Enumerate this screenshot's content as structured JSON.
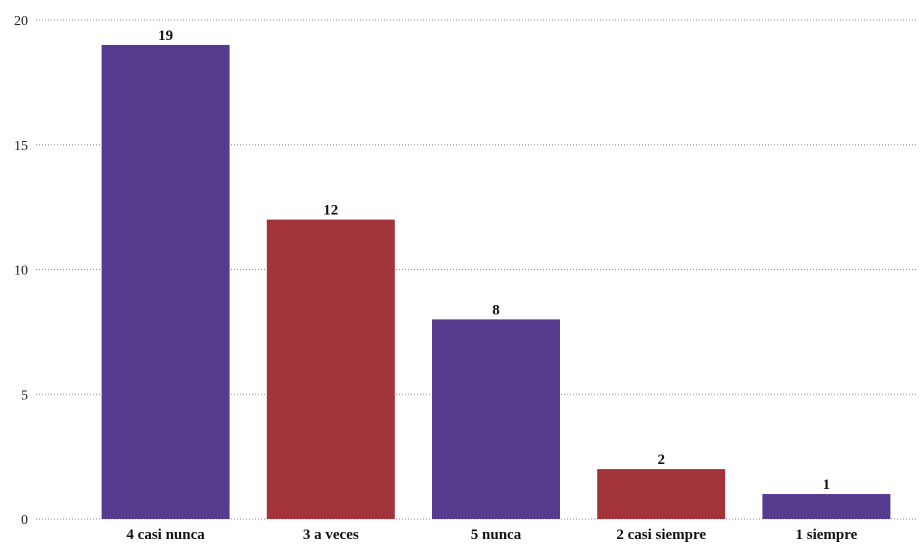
{
  "chart_data": {
    "type": "bar",
    "categories": [
      "4 casi nunca",
      "3 a veces",
      "5 nunca",
      "2 casi siempre",
      "1 siempre"
    ],
    "values": [
      19,
      12,
      8,
      2,
      1
    ],
    "bar_colors": [
      "#563a8e",
      "#a2333b",
      "#563a8e",
      "#a2333b",
      "#563a8e"
    ],
    "yticks": [
      0,
      5,
      10,
      15,
      20
    ],
    "ylim": [
      0,
      20
    ],
    "grid": true,
    "legend": false
  }
}
